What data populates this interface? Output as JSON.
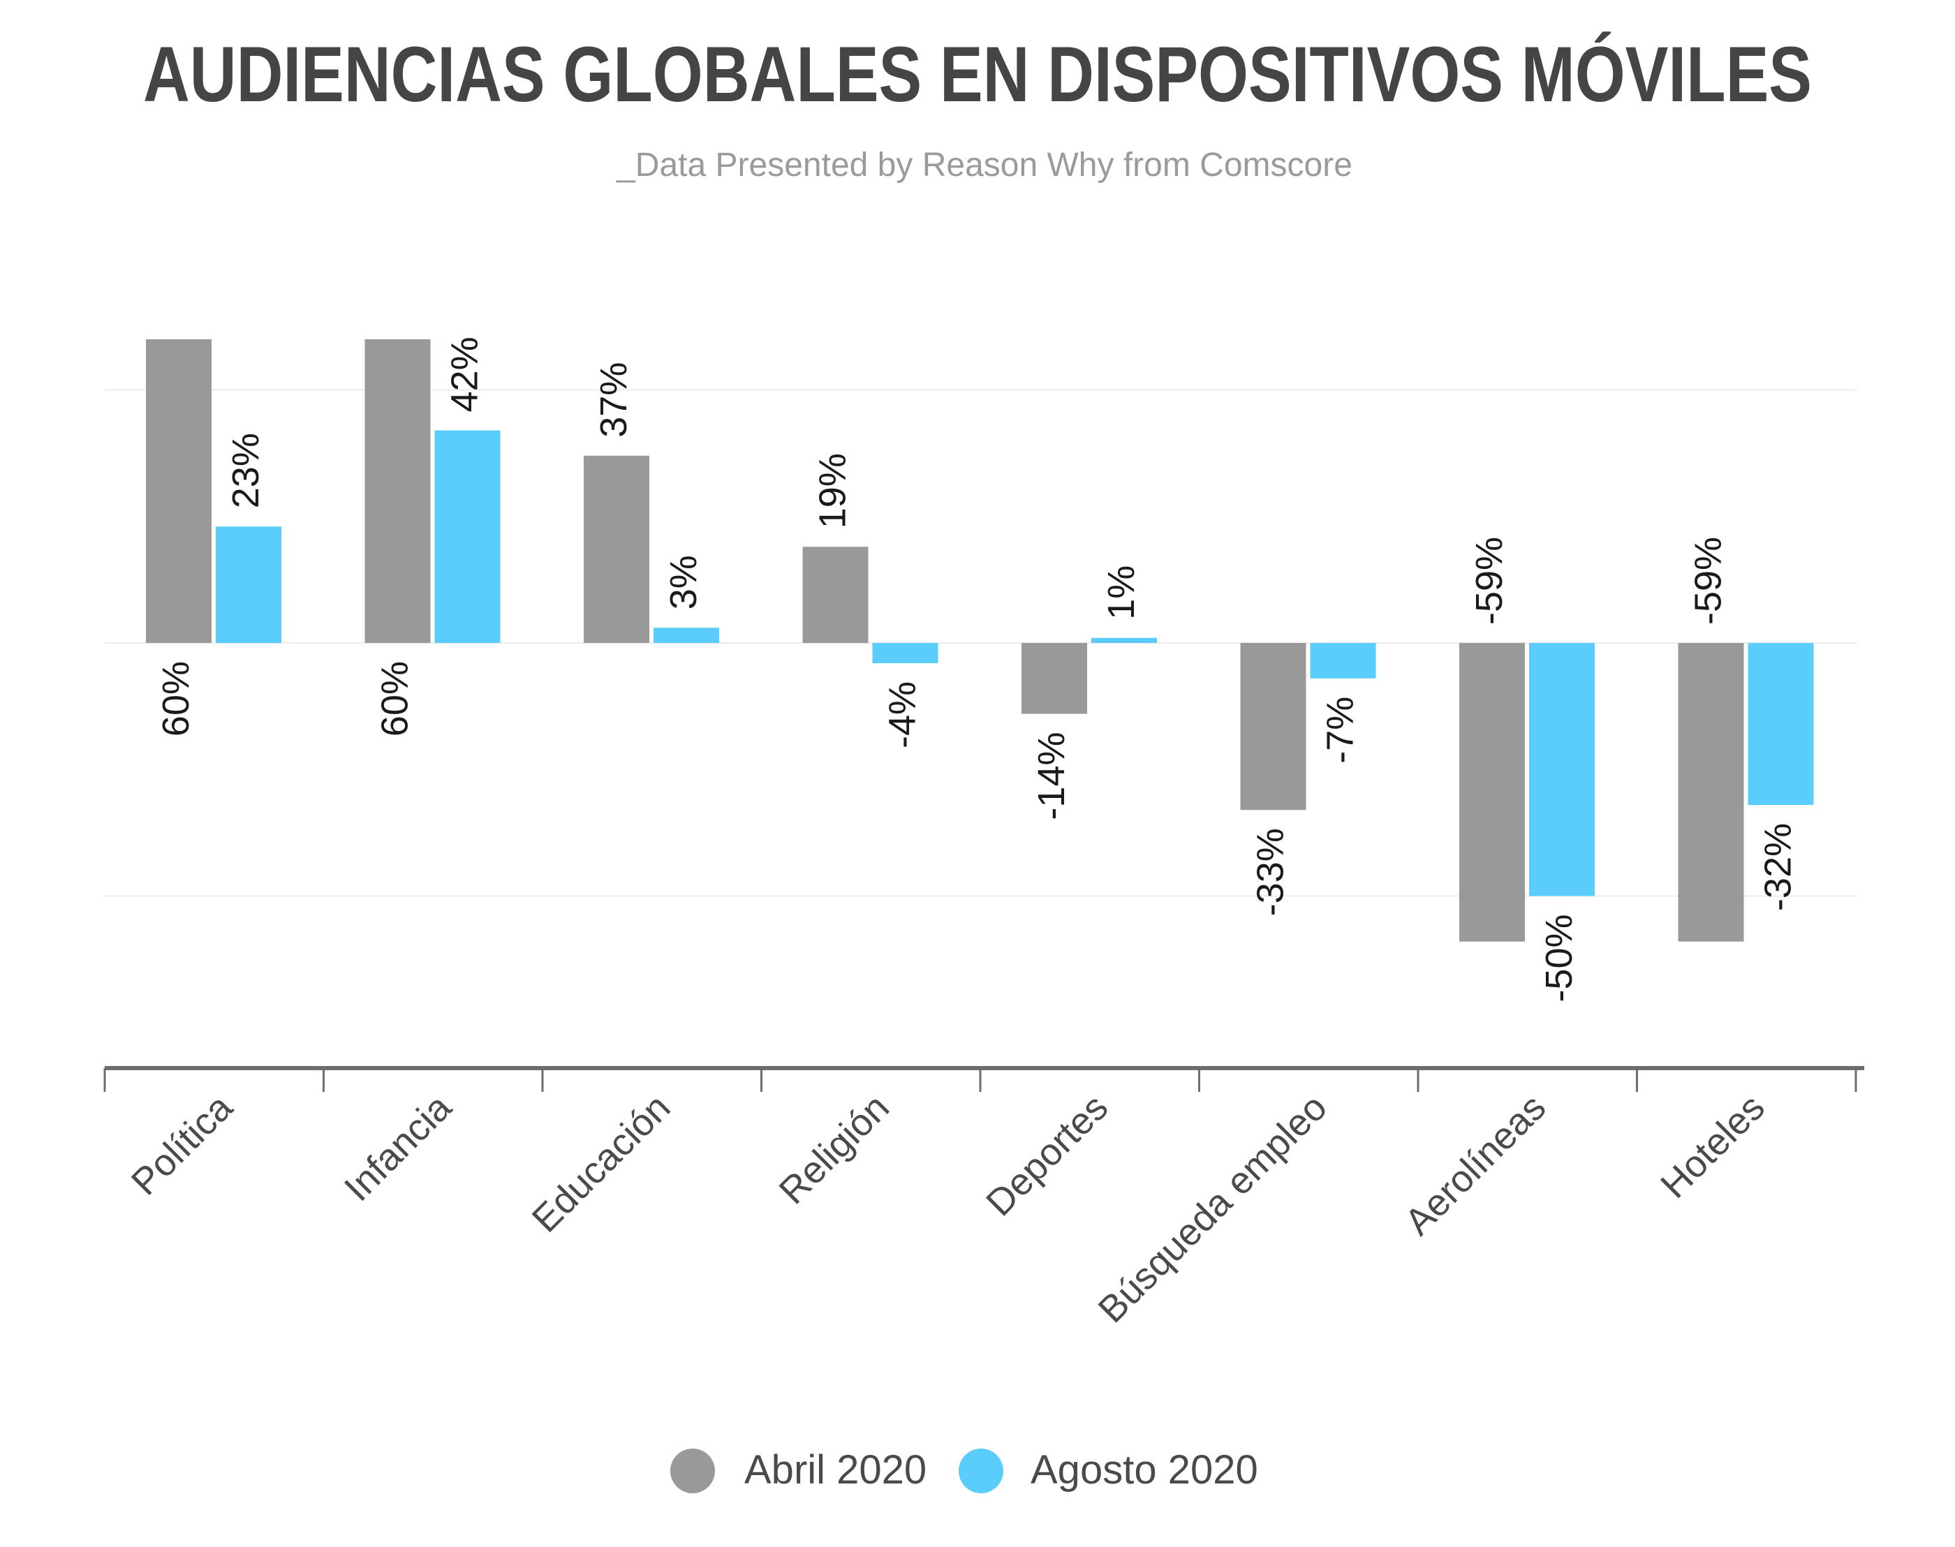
{
  "chart_data": {
    "type": "bar",
    "title": "AUDIENCIAS GLOBALES EN DISPOSITIVOS MÓVILES",
    "subtitle": "_Data Presented by Reason Why from Comscore",
    "categories": [
      "Política",
      "Infancia",
      "Educación",
      "Religión",
      "Deportes",
      "Búsqueda empleo",
      "Aerolíneas",
      "Hoteles"
    ],
    "series": [
      {
        "name": "Abril 2020",
        "color": "#999999",
        "values": [
          60,
          60,
          37,
          19,
          -14,
          -33,
          -59,
          -59
        ],
        "labels": [
          "60%",
          "60%",
          "37%",
          "19%",
          "-14%",
          "-33%",
          "-59%",
          "-59%"
        ]
      },
      {
        "name": "Agosto 2020",
        "color": "#5bcdfc",
        "values": [
          23,
          42,
          3,
          -4,
          1,
          -7,
          -50,
          -32
        ],
        "labels": [
          "23%",
          "42%",
          "3%",
          "-4%",
          "1%",
          "-7%",
          "-50%",
          "-32%"
        ]
      }
    ],
    "ylim": [
      -83,
      65
    ],
    "gridlines": [
      50,
      0,
      -50
    ],
    "grid": true,
    "legend_position": "bottom"
  }
}
